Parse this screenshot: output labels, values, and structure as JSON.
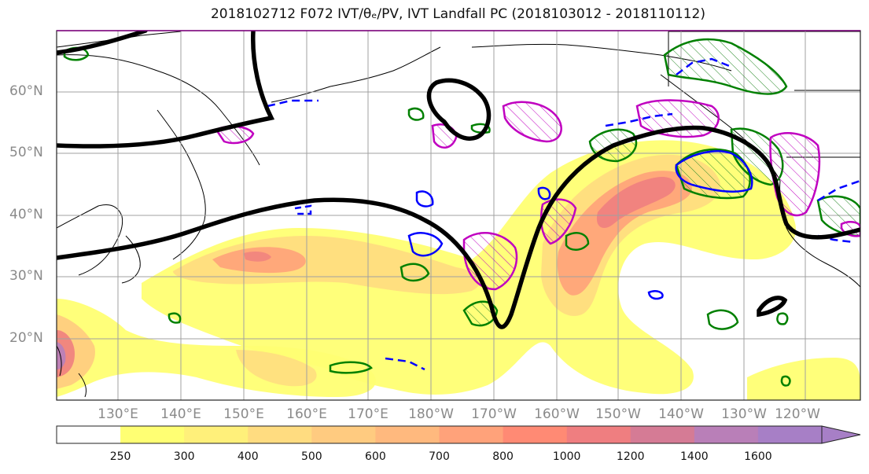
{
  "title": "2018102712 F072 IVT/θₑ/PV, IVT Landfall PC (2018103012 - 2018110112)",
  "lat_labels": [
    "20°N",
    "30°N",
    "40°N",
    "50°N",
    "60°N"
  ],
  "lon_labels": [
    "130°E",
    "140°E",
    "150°E",
    "160°E",
    "170°E",
    "180°W",
    "170°W",
    "160°W",
    "150°W",
    "140°W",
    "130°W",
    "120°W"
  ],
  "colorbar": {
    "ticks": [
      "250",
      "300",
      "400",
      "500",
      "600",
      "700",
      "800",
      "1000",
      "1200",
      "1400",
      "1600"
    ],
    "colors": [
      "#ffff73",
      "#fff07a",
      "#ffdc80",
      "#ffcb80",
      "#ffb97e",
      "#ffa27a",
      "#ff8a74",
      "#ef7e80",
      "#d57b95",
      "#b97fb8",
      "#a77fc6"
    ]
  },
  "colors": {
    "pv_contour": "#000000",
    "theta_e_contour": "#008000",
    "landfall_blue": "#0000ff",
    "landfall_magenta": "#c000c0",
    "grid": "#a0a0a0",
    "frame": "#800080"
  }
}
